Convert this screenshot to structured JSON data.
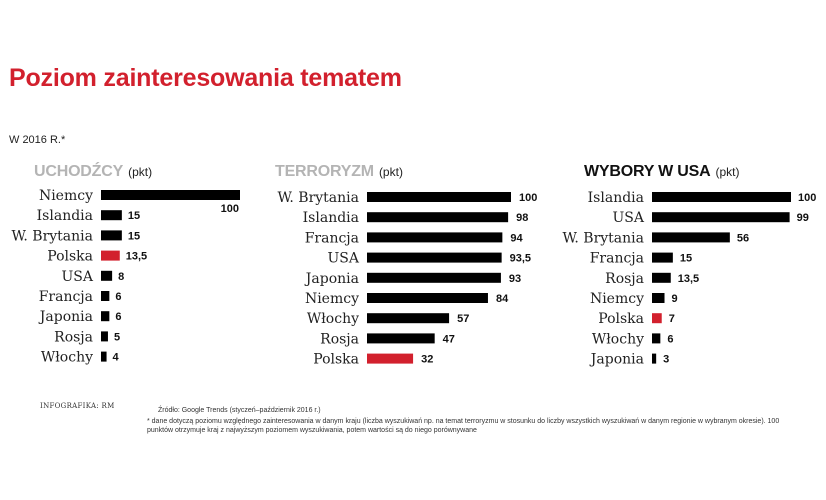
{
  "title": "Poziom zainteresowania tematem",
  "subtitle": "W 2016 R.*",
  "credit": "INFOGRAFIKA: RM",
  "footnote_source": "Źródło: Google Trends (styczeń–październik 2016 r.)",
  "footnote_note": "* dane dotyczą poziomu względnego zainteresowania w danym kraju (liczba wyszukiwań np. na temat terroryzmu w stosunku do liczby wszystkich wyszukiwań w danym regionie w wybranym okresie). 100 punktów otrzymuje kraj z najwyższym poziomem wyszukiwania, potem wartości są do niego porównywane",
  "colors": {
    "bar": "#000000",
    "highlight": "#d2202d",
    "accent": "#d2202d",
    "muted_heading": "#b4b4b4"
  },
  "chart_data": [
    {
      "type": "bar",
      "title": "UCHODŹCY",
      "unit": "(pkt)",
      "heading_style": "muted",
      "highlight": "Polska",
      "categories": [
        "Niemcy",
        "Islandia",
        "W. Brytania",
        "Polska",
        "USA",
        "Francja",
        "Japonia",
        "Rosja",
        "Włochy"
      ],
      "values": [
        100,
        15,
        15,
        13.5,
        8,
        6,
        6,
        5,
        4
      ],
      "value_labels": [
        "100",
        "15",
        "15",
        "13,5",
        "8",
        "6",
        "6",
        "5",
        "4"
      ],
      "xlim": [
        0,
        100
      ]
    },
    {
      "type": "bar",
      "title": "TERRORYZM",
      "unit": "(pkt)",
      "heading_style": "muted",
      "highlight": "Polska",
      "categories": [
        "W. Brytania",
        "Islandia",
        "Francja",
        "USA",
        "Japonia",
        "Niemcy",
        "Włochy",
        "Rosja",
        "Polska"
      ],
      "values": [
        100,
        98,
        94,
        93.5,
        93,
        84,
        57,
        47,
        32
      ],
      "value_labels": [
        "100",
        "98",
        "94",
        "93,5",
        "93",
        "84",
        "57",
        "47",
        "32"
      ],
      "xlim": [
        0,
        100
      ]
    },
    {
      "type": "bar",
      "title": "WYBORY W USA",
      "unit": "(pkt)",
      "heading_style": "dark",
      "highlight": "Polska",
      "categories": [
        "Islandia",
        "USA",
        "W. Brytania",
        "Francja",
        "Rosja",
        "Niemcy",
        "Polska",
        "Włochy",
        "Japonia"
      ],
      "values": [
        100,
        99,
        56,
        15,
        13.5,
        9,
        7,
        6,
        3
      ],
      "value_labels": [
        "100",
        "99",
        "56",
        "15",
        "13,5",
        "9",
        "7",
        "6",
        "3"
      ],
      "xlim": [
        0,
        100
      ]
    }
  ]
}
